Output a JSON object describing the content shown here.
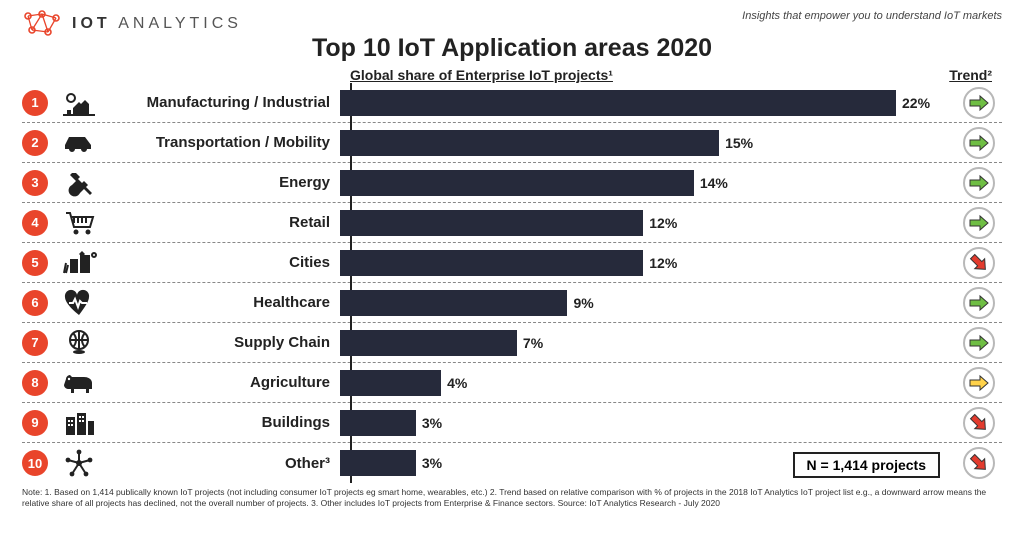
{
  "brand": {
    "word1": "IOT",
    "word2": "ANALYTICS",
    "logo_color": "#e9452b"
  },
  "tagline": "Insights that empower you to understand IoT markets",
  "title": "Top 10 IoT Application areas 2020",
  "subtitle": "Global share of Enterprise IoT projects¹",
  "trend_header": "Trend²",
  "chart": {
    "type": "bar",
    "bar_color": "#262a3b",
    "max_value": 22,
    "rank_color": "#e9452b",
    "trend_colors": {
      "up": "#6fbe44",
      "down": "#e23b2e",
      "flat": "#ffd24a"
    },
    "trend_border": "#b8b8b8",
    "label_col_width": 240,
    "rows": [
      {
        "rank": "1",
        "label": "Manufacturing / Industrial",
        "value": 22,
        "value_label": "22%",
        "trend": "up",
        "icon": "factory"
      },
      {
        "rank": "2",
        "label": "Transportation / Mobility",
        "value": 15,
        "value_label": "15%",
        "trend": "up",
        "icon": "car"
      },
      {
        "rank": "3",
        "label": "Energy",
        "value": 14,
        "value_label": "14%",
        "trend": "up",
        "icon": "plug"
      },
      {
        "rank": "4",
        "label": "Retail",
        "value": 12,
        "value_label": "12%",
        "trend": "up",
        "icon": "cart"
      },
      {
        "rank": "5",
        "label": "Cities",
        "value": 12,
        "value_label": "12%",
        "trend": "down",
        "icon": "city"
      },
      {
        "rank": "6",
        "label": "Healthcare",
        "value": 9,
        "value_label": "9%",
        "trend": "up",
        "icon": "health"
      },
      {
        "rank": "7",
        "label": "Supply Chain",
        "value": 7,
        "value_label": "7%",
        "trend": "up",
        "icon": "globe"
      },
      {
        "rank": "8",
        "label": "Agriculture",
        "value": 4,
        "value_label": "4%",
        "trend": "flat",
        "icon": "cow"
      },
      {
        "rank": "9",
        "label": "Buildings",
        "value": 3,
        "value_label": "3%",
        "trend": "down",
        "icon": "buildings"
      },
      {
        "rank": "10",
        "label": "Other³",
        "value": 3,
        "value_label": "3%",
        "trend": "down",
        "icon": "nodes"
      }
    ]
  },
  "n_box": "N = 1,414 projects",
  "footnote": "Note: 1. Based on 1,414 publically known IoT projects (not including consumer IoT projects eg smart home, wearables, etc.) 2. Trend based on relative comparison with % of projects in the 2018 IoT Analytics IoT project list e.g., a downward arrow means the relative share of all projects has declined, not the overall number of projects. 3. Other includes IoT projects from Enterprise & Finance sectors.  Source: IoT Analytics Research - July 2020"
}
